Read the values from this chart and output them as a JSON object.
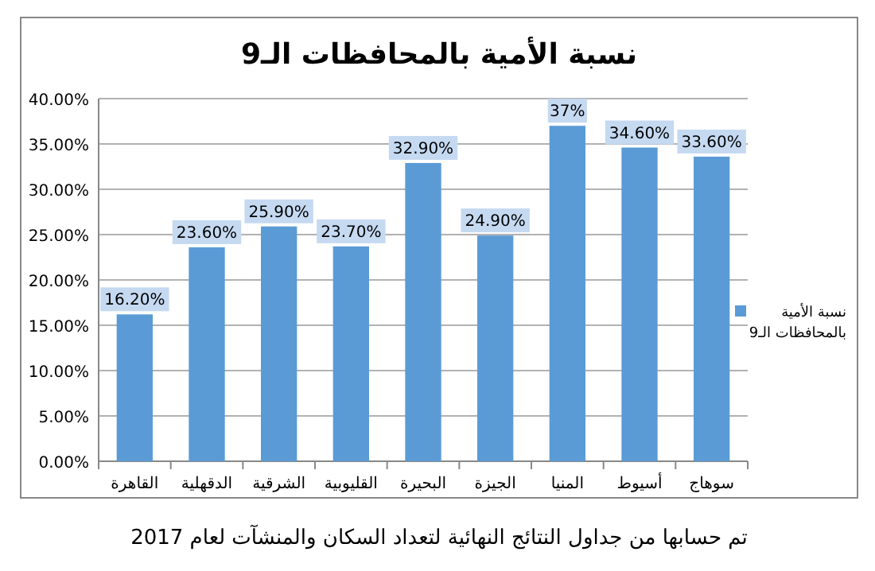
{
  "chart_data": {
    "type": "bar",
    "title": "نسبة الأمية بالمحافظات الـ9",
    "categories": [
      "القاهرة",
      "الدقهلية",
      "الشرقية",
      "القليوبية",
      "البحيرة",
      "الجيزة",
      "المنيا",
      "أسيوط",
      "سوهاج"
    ],
    "series": [
      {
        "name": "نسبة الأمية بالمحافظات الـ9",
        "color": "#5b9bd5",
        "values": [
          16.2,
          23.6,
          25.9,
          23.7,
          32.9,
          24.9,
          37,
          34.6,
          33.6
        ],
        "value_labels": [
          "16.20%",
          "23.60%",
          "25.90%",
          "23.70%",
          "32.90%",
          "24.90%",
          "37%",
          "34.60%",
          "33.60%"
        ]
      }
    ],
    "ylim": [
      0,
      40
    ],
    "yticks": [
      {
        "value": 0,
        "label": "0.00%"
      },
      {
        "value": 5,
        "label": "5.00%"
      },
      {
        "value": 10,
        "label": "10.00%"
      },
      {
        "value": 15,
        "label": "15.00%"
      },
      {
        "value": 20,
        "label": "20.00%"
      },
      {
        "value": 25,
        "label": "25.00%"
      },
      {
        "value": 30,
        "label": "30.00%"
      },
      {
        "value": 35,
        "label": "35.00%"
      },
      {
        "value": 40,
        "label": "40.00%"
      }
    ],
    "grid": "y",
    "legend": "right",
    "annotations": [
      "تم حسابها من جداول النتائج النهائية لتعداد السكان والمنشآت لعام 2017"
    ]
  }
}
